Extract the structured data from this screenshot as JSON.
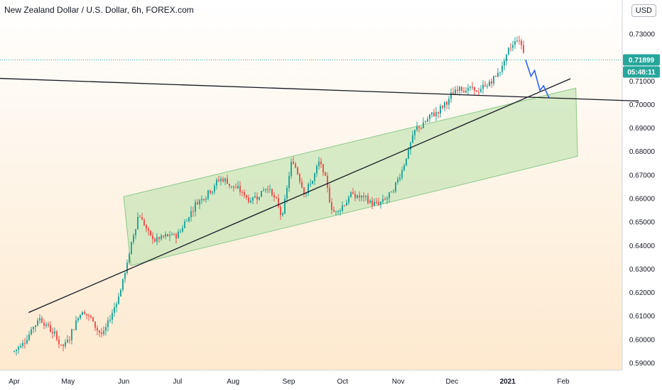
{
  "header": {
    "title": "New Zealand Dollar / U.S. Dollar, 6h, FOREX.com",
    "currency": "USD"
  },
  "colors": {
    "bg_top": "#ffffff",
    "bg_bottom": "#fde8cc",
    "up": "#26a69a",
    "down": "#ef5350",
    "channel_fill": "#c8e6b8",
    "channel_stroke": "#8bc98a",
    "trendline": "#131722",
    "projection": "#2962ff",
    "price_tag": "#26a69a"
  },
  "price_axis": {
    "labels": [
      "0.73000",
      "0.71899",
      "0.71000",
      "0.70000",
      "0.69000",
      "0.68000",
      "0.67000",
      "0.66000",
      "0.65000",
      "0.64000",
      "0.63000",
      "0.62000",
      "0.61000",
      "0.60000",
      "0.59000"
    ],
    "last_price": "0.71899",
    "countdown": "05:48:11"
  },
  "time_axis": {
    "labels": [
      "Apr",
      "May",
      "Jun",
      "Jul",
      "Aug",
      "Sep",
      "Oct",
      "Nov",
      "Dec",
      "2021",
      "Feb"
    ]
  },
  "chart_data": {
    "type": "candlestick",
    "ylim": [
      0.587,
      0.734
    ],
    "anchors": [
      {
        "date": "2020-04-01",
        "price": 0.595
      },
      {
        "date": "2020-04-15",
        "price": 0.61
      },
      {
        "date": "2020-04-28",
        "price": 0.596
      },
      {
        "date": "2020-05-08",
        "price": 0.614
      },
      {
        "date": "2020-05-20",
        "price": 0.601
      },
      {
        "date": "2020-05-27",
        "price": 0.616
      },
      {
        "date": "2020-06-01",
        "price": 0.628
      },
      {
        "date": "2020-06-09",
        "price": 0.656
      },
      {
        "date": "2020-06-15",
        "price": 0.642
      },
      {
        "date": "2020-06-30",
        "price": 0.644
      },
      {
        "date": "2020-07-10",
        "price": 0.658
      },
      {
        "date": "2020-07-25",
        "price": 0.669
      },
      {
        "date": "2020-08-10",
        "price": 0.659
      },
      {
        "date": "2020-08-20",
        "price": 0.666
      },
      {
        "date": "2020-08-28",
        "price": 0.651
      },
      {
        "date": "2020-09-02",
        "price": 0.678
      },
      {
        "date": "2020-09-10",
        "price": 0.662
      },
      {
        "date": "2020-09-18",
        "price": 0.676
      },
      {
        "date": "2020-09-25",
        "price": 0.653
      },
      {
        "date": "2020-10-05",
        "price": 0.662
      },
      {
        "date": "2020-10-20",
        "price": 0.657
      },
      {
        "date": "2020-10-29",
        "price": 0.663
      },
      {
        "date": "2020-11-04",
        "price": 0.677
      },
      {
        "date": "2020-11-10",
        "price": 0.689
      },
      {
        "date": "2020-11-25",
        "price": 0.699
      },
      {
        "date": "2020-12-05",
        "price": 0.708
      },
      {
        "date": "2020-12-15",
        "price": 0.705
      },
      {
        "date": "2020-12-25",
        "price": 0.712
      },
      {
        "date": "2021-01-06",
        "price": 0.73
      },
      {
        "date": "2021-01-11",
        "price": 0.719
      }
    ],
    "projection": [
      {
        "date": "2021-01-11",
        "price": 0.719
      },
      {
        "date": "2021-01-14",
        "price": 0.712
      },
      {
        "date": "2021-01-16",
        "price": 0.7145
      },
      {
        "date": "2021-01-19",
        "price": 0.706
      },
      {
        "date": "2021-01-21",
        "price": 0.708
      },
      {
        "date": "2021-01-24",
        "price": 0.703
      }
    ],
    "drawings": {
      "channel": [
        {
          "date": "2020-06-01",
          "price": 0.6608
        },
        {
          "date": "2021-02-08",
          "price": 0.707
        },
        {
          "date": "2021-02-09",
          "price": 0.678
        },
        {
          "date": "2020-06-05",
          "price": 0.6315
        }
      ],
      "uptrend": [
        {
          "date": "2020-04-09",
          "price": 0.6115
        },
        {
          "date": "2021-02-05",
          "price": 0.711
        }
      ],
      "horizontal": [
        {
          "date": "2020-03-10",
          "price": 0.7115
        },
        {
          "date": "2021-03-15",
          "price": 0.7015
        }
      ]
    }
  }
}
